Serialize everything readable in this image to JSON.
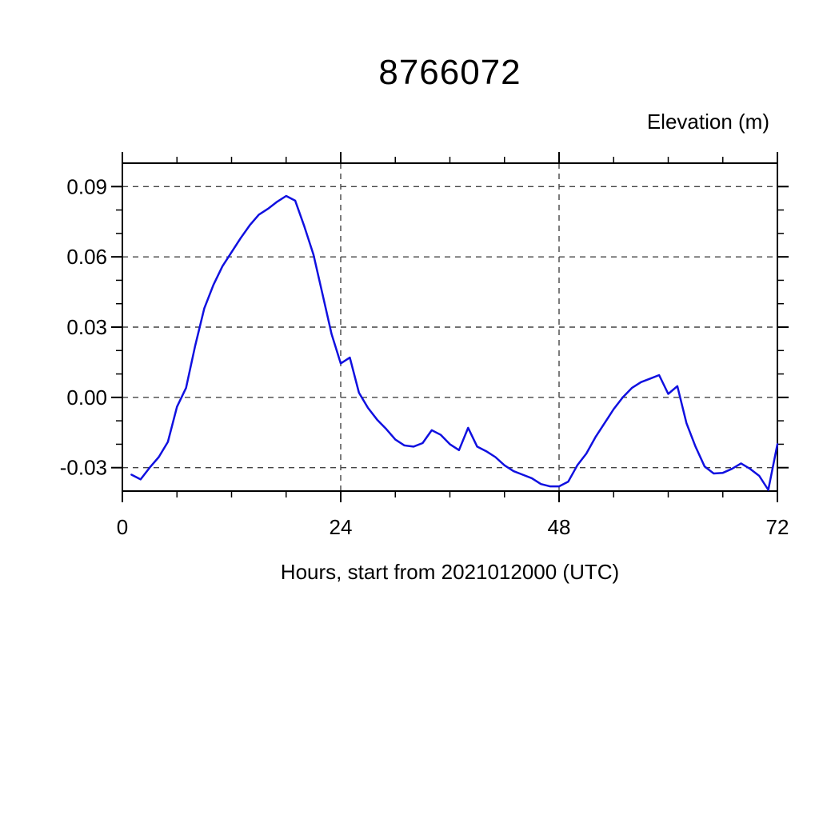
{
  "chart_data": {
    "type": "line",
    "title": "8766072",
    "right_label": "Elevation (m)",
    "xlabel": "Hours, start from 2021012000 (UTC)",
    "ylabel": "",
    "xlim": [
      0,
      72
    ],
    "ylim": [
      -0.04,
      0.1
    ],
    "x_major_ticks": [
      0,
      24,
      48,
      72
    ],
    "x_tick_labels": [
      "0",
      "24",
      "48",
      "72"
    ],
    "x_minor_step": 6,
    "y_major_ticks": [
      -0.03,
      0.0,
      0.03,
      0.06,
      0.09
    ],
    "y_tick_labels": [
      "-0.03",
      "0.00",
      "0.03",
      "0.06",
      "0.09"
    ],
    "y_minor_step": 0.01,
    "grid_x": [
      24,
      48
    ],
    "grid_y": [
      -0.03,
      0.0,
      0.03,
      0.06,
      0.09
    ],
    "grid_on": true,
    "legend_position": "none",
    "line_color": "#1010e0",
    "frame_color": "#000000",
    "grid_color": "#444444",
    "series": [
      {
        "name": "elevation",
        "x": [
          1,
          2,
          3,
          4,
          5,
          6,
          7,
          8,
          9,
          10,
          11,
          12,
          13,
          14,
          15,
          16,
          17,
          18,
          19,
          20,
          21,
          22,
          23,
          24,
          25,
          26,
          27,
          28,
          29,
          30,
          31,
          32,
          33,
          34,
          35,
          36,
          37,
          38,
          39,
          40,
          41,
          42,
          43,
          44,
          45,
          46,
          47,
          48,
          49,
          50,
          51,
          52,
          53,
          54,
          55,
          56,
          57,
          58,
          59,
          60,
          61,
          62,
          63,
          64,
          65,
          66,
          67,
          68,
          69,
          70,
          71,
          72
        ],
        "values": [
          -0.033,
          -0.035,
          -0.03,
          -0.0255,
          -0.019,
          -0.004,
          0.004,
          0.022,
          0.038,
          0.048,
          0.056,
          0.062,
          0.068,
          0.0735,
          0.078,
          0.0805,
          0.0835,
          0.086,
          0.084,
          0.073,
          0.061,
          0.044,
          0.027,
          0.0145,
          0.017,
          0.002,
          -0.0045,
          -0.0095,
          -0.0135,
          -0.018,
          -0.0205,
          -0.021,
          -0.0195,
          -0.014,
          -0.016,
          -0.02,
          -0.0225,
          -0.013,
          -0.021,
          -0.023,
          -0.0255,
          -0.029,
          -0.0315,
          -0.033,
          -0.0345,
          -0.037,
          -0.038,
          -0.038,
          -0.036,
          -0.029,
          -0.024,
          -0.017,
          -0.011,
          -0.005,
          0.0,
          0.004,
          0.0065,
          0.008,
          0.0095,
          0.0015,
          0.0048,
          -0.011,
          -0.021,
          -0.0295,
          -0.0325,
          -0.0322,
          -0.0305,
          -0.0282,
          -0.0305,
          -0.0335,
          -0.0395,
          -0.02
        ]
      }
    ]
  }
}
